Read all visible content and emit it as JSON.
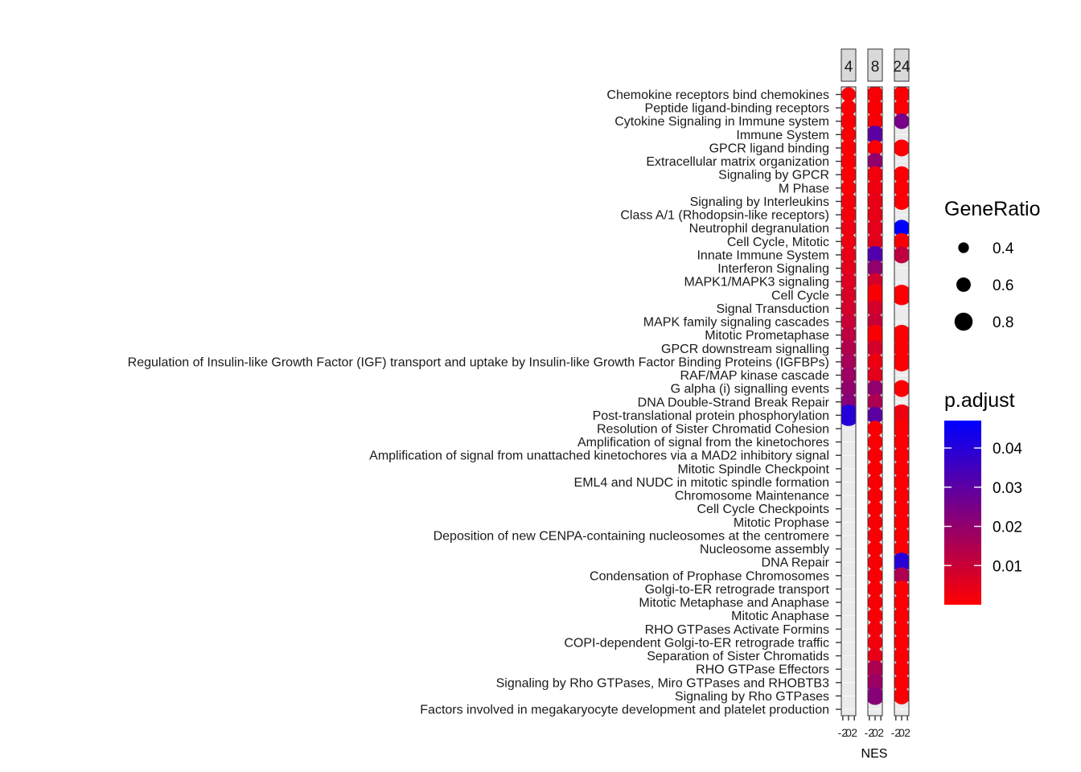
{
  "chart_data": {
    "type": "scatter",
    "xlabel": "NES",
    "facets": [
      {
        "label": "4",
        "x_tick_labels": [
          "-2",
          "0",
          "2"
        ]
      },
      {
        "label": "8",
        "x_tick_labels": [
          "-2",
          "0",
          "2"
        ]
      },
      {
        "label": "24",
        "x_tick_labels": [
          "-2",
          "0",
          "2"
        ]
      }
    ],
    "x_range": [
      -2.5,
      2.5
    ],
    "pathways": [
      "Chemokine receptors bind chemokines",
      "Peptide ligand-binding receptors",
      "Cytokine Signaling in Immune system",
      "Immune System",
      "GPCR ligand binding",
      "Extracellular matrix organization",
      "Signaling by GPCR",
      "M Phase",
      "Signaling by Interleukins",
      "Class A/1 (Rhodopsin-like receptors)",
      "Neutrophil degranulation",
      "Cell Cycle, Mitotic",
      "Innate Immune System",
      "Interferon Signaling",
      "MAPK1/MAPK3 signaling",
      "Cell Cycle",
      "Signal Transduction",
      "MAPK family signaling cascades",
      "Mitotic Prometaphase",
      "GPCR downstream signalling",
      "Regulation of Insulin-like Growth Factor (IGF) transport and uptake by Insulin-like Growth Factor Binding Proteins (IGFBPs)",
      "RAF/MAP kinase cascade",
      "G alpha (i) signalling events",
      "DNA Double-Strand Break Repair",
      "Post-translational protein phosphorylation",
      "Resolution of Sister Chromatid Cohesion",
      "Amplification of signal from the kinetochores",
      "Amplification of signal from unattached kinetochores via a MAD2 inhibitory signal",
      "Mitotic Spindle Checkpoint",
      "EML4 and NUDC in mitotic spindle formation",
      "Chromosome Maintenance",
      "Cell Cycle Checkpoints",
      "Mitotic Prophase",
      "Deposition of new CENPA-containing nucleosomes at the centromere",
      "Nucleosome assembly",
      "DNA Repair",
      "Condensation of Prophase Chromosomes",
      "Golgi-to-ER retrograde transport",
      "Mitotic Metaphase and Anaphase",
      "Mitotic Anaphase",
      "RHO GTPases Activate Formins",
      "COPI-dependent Golgi-to-ER retrograde traffic",
      "Separation of Sister Chromatids",
      "RHO GTPase Effectors",
      "Signaling by Rho GTPases, Miro GTPases and RHOBTB3",
      "Signaling by Rho GTPases",
      "Factors involved in megakaryocyte development and platelet production"
    ],
    "points": [
      {
        "facet": "4",
        "row": 0,
        "nes": 0.0,
        "gene_ratio": 0.45,
        "p_adjust": 0.001
      },
      {
        "facet": "4",
        "row": 1,
        "nes": 0.0,
        "gene_ratio": 0.5,
        "p_adjust": 0.001
      },
      {
        "facet": "4",
        "row": 2,
        "nes": 0.0,
        "gene_ratio": 0.55,
        "p_adjust": 0.001
      },
      {
        "facet": "4",
        "row": 3,
        "nes": 0.0,
        "gene_ratio": 0.5,
        "p_adjust": 0.001
      },
      {
        "facet": "4",
        "row": 4,
        "nes": 0.0,
        "gene_ratio": 0.55,
        "p_adjust": 0.001
      },
      {
        "facet": "4",
        "row": 5,
        "nes": 0.0,
        "gene_ratio": 0.55,
        "p_adjust": 0.001
      },
      {
        "facet": "4",
        "row": 6,
        "nes": 0.0,
        "gene_ratio": 0.55,
        "p_adjust": 0.001
      },
      {
        "facet": "4",
        "row": 7,
        "nes": 0.0,
        "gene_ratio": 0.5,
        "p_adjust": 0.001
      },
      {
        "facet": "4",
        "row": 8,
        "nes": 0.0,
        "gene_ratio": 0.55,
        "p_adjust": 0.002
      },
      {
        "facet": "4",
        "row": 9,
        "nes": 0.0,
        "gene_ratio": 0.55,
        "p_adjust": 0.002
      },
      {
        "facet": "4",
        "row": 10,
        "nes": 0.0,
        "gene_ratio": 0.55,
        "p_adjust": 0.003
      },
      {
        "facet": "4",
        "row": 11,
        "nes": 0.0,
        "gene_ratio": 0.5,
        "p_adjust": 0.003
      },
      {
        "facet": "4",
        "row": 12,
        "nes": 0.0,
        "gene_ratio": 0.55,
        "p_adjust": 0.004
      },
      {
        "facet": "4",
        "row": 13,
        "nes": 0.0,
        "gene_ratio": 0.55,
        "p_adjust": 0.005
      },
      {
        "facet": "4",
        "row": 14,
        "nes": 0.0,
        "gene_ratio": 0.55,
        "p_adjust": 0.006
      },
      {
        "facet": "4",
        "row": 15,
        "nes": 0.0,
        "gene_ratio": 0.55,
        "p_adjust": 0.007
      },
      {
        "facet": "4",
        "row": 16,
        "nes": 0.0,
        "gene_ratio": 0.55,
        "p_adjust": 0.008
      },
      {
        "facet": "4",
        "row": 17,
        "nes": 0.0,
        "gene_ratio": 0.55,
        "p_adjust": 0.01
      },
      {
        "facet": "4",
        "row": 18,
        "nes": 0.0,
        "gene_ratio": 0.55,
        "p_adjust": 0.012
      },
      {
        "facet": "4",
        "row": 19,
        "nes": 0.0,
        "gene_ratio": 0.55,
        "p_adjust": 0.014
      },
      {
        "facet": "4",
        "row": 20,
        "nes": 0.0,
        "gene_ratio": 0.55,
        "p_adjust": 0.016
      },
      {
        "facet": "4",
        "row": 21,
        "nes": 0.0,
        "gene_ratio": 0.55,
        "p_adjust": 0.018
      },
      {
        "facet": "4",
        "row": 22,
        "nes": 0.0,
        "gene_ratio": 0.55,
        "p_adjust": 0.02
      },
      {
        "facet": "4",
        "row": 23,
        "nes": 0.0,
        "gene_ratio": 0.55,
        "p_adjust": 0.022
      },
      {
        "facet": "4",
        "row": 24,
        "nes": 0.0,
        "gene_ratio": 0.75,
        "p_adjust": 0.04
      },
      {
        "facet": "8",
        "row": 0,
        "nes": 0.0,
        "gene_ratio": 0.55,
        "p_adjust": 0.001
      },
      {
        "facet": "8",
        "row": 1,
        "nes": 0.0,
        "gene_ratio": 0.55,
        "p_adjust": 0.001
      },
      {
        "facet": "8",
        "row": 2,
        "nes": 0.0,
        "gene_ratio": 0.55,
        "p_adjust": 0.001
      },
      {
        "facet": "8",
        "row": 3,
        "nes": 0.0,
        "gene_ratio": 0.6,
        "p_adjust": 0.03
      },
      {
        "facet": "8",
        "row": 4,
        "nes": 0.0,
        "gene_ratio": 0.5,
        "p_adjust": 0.001
      },
      {
        "facet": "8",
        "row": 5,
        "nes": 0.0,
        "gene_ratio": 0.55,
        "p_adjust": 0.02
      },
      {
        "facet": "8",
        "row": 6,
        "nes": 0.0,
        "gene_ratio": 0.55,
        "p_adjust": 0.002
      },
      {
        "facet": "8",
        "row": 7,
        "nes": 0.0,
        "gene_ratio": 0.55,
        "p_adjust": 0.003
      },
      {
        "facet": "8",
        "row": 8,
        "nes": 0.0,
        "gene_ratio": 0.55,
        "p_adjust": 0.004
      },
      {
        "facet": "8",
        "row": 9,
        "nes": 0.0,
        "gene_ratio": 0.55,
        "p_adjust": 0.004
      },
      {
        "facet": "8",
        "row": 10,
        "nes": 0.0,
        "gene_ratio": 0.55,
        "p_adjust": 0.005
      },
      {
        "facet": "8",
        "row": 11,
        "nes": 0.0,
        "gene_ratio": 0.55,
        "p_adjust": 0.005
      },
      {
        "facet": "8",
        "row": 12,
        "nes": 0.0,
        "gene_ratio": 0.6,
        "p_adjust": 0.032
      },
      {
        "facet": "8",
        "row": 13,
        "nes": 0.0,
        "gene_ratio": 0.55,
        "p_adjust": 0.02
      },
      {
        "facet": "8",
        "row": 14,
        "nes": 0.0,
        "gene_ratio": 0.55,
        "p_adjust": 0.008
      },
      {
        "facet": "8",
        "row": 15,
        "nes": 0.0,
        "gene_ratio": 0.75,
        "p_adjust": 0.001
      },
      {
        "facet": "8",
        "row": 16,
        "nes": 0.0,
        "gene_ratio": 0.55,
        "p_adjust": 0.008
      },
      {
        "facet": "8",
        "row": 17,
        "nes": 0.0,
        "gene_ratio": 0.55,
        "p_adjust": 0.01
      },
      {
        "facet": "8",
        "row": 18,
        "nes": 0.0,
        "gene_ratio": 0.7,
        "p_adjust": 0.001
      },
      {
        "facet": "8",
        "row": 19,
        "nes": 0.0,
        "gene_ratio": 0.55,
        "p_adjust": 0.008
      },
      {
        "facet": "8",
        "row": 20,
        "nes": 0.0,
        "gene_ratio": 0.55,
        "p_adjust": 0.003
      },
      {
        "facet": "8",
        "row": 21,
        "nes": 0.0,
        "gene_ratio": 0.55,
        "p_adjust": 0.005
      },
      {
        "facet": "8",
        "row": 22,
        "nes": 0.0,
        "gene_ratio": 0.55,
        "p_adjust": 0.02
      },
      {
        "facet": "8",
        "row": 23,
        "nes": 0.0,
        "gene_ratio": 0.55,
        "p_adjust": 0.015
      },
      {
        "facet": "8",
        "row": 24,
        "nes": 0.0,
        "gene_ratio": 0.55,
        "p_adjust": 0.03
      },
      {
        "facet": "8",
        "row": 25,
        "nes": 0.0,
        "gene_ratio": 0.5,
        "p_adjust": 0.001
      },
      {
        "facet": "8",
        "row": 26,
        "nes": 0.0,
        "gene_ratio": 0.5,
        "p_adjust": 0.001
      },
      {
        "facet": "8",
        "row": 27,
        "nes": 0.0,
        "gene_ratio": 0.5,
        "p_adjust": 0.001
      },
      {
        "facet": "8",
        "row": 28,
        "nes": 0.0,
        "gene_ratio": 0.5,
        "p_adjust": 0.001
      },
      {
        "facet": "8",
        "row": 29,
        "nes": 0.0,
        "gene_ratio": 0.5,
        "p_adjust": 0.001
      },
      {
        "facet": "8",
        "row": 30,
        "nes": 0.0,
        "gene_ratio": 0.5,
        "p_adjust": 0.001
      },
      {
        "facet": "8",
        "row": 31,
        "nes": 0.0,
        "gene_ratio": 0.5,
        "p_adjust": 0.001
      },
      {
        "facet": "8",
        "row": 32,
        "nes": 0.0,
        "gene_ratio": 0.5,
        "p_adjust": 0.001
      },
      {
        "facet": "8",
        "row": 33,
        "nes": 0.0,
        "gene_ratio": 0.5,
        "p_adjust": 0.001
      },
      {
        "facet": "8",
        "row": 34,
        "nes": 0.0,
        "gene_ratio": 0.5,
        "p_adjust": 0.001
      },
      {
        "facet": "8",
        "row": 35,
        "nes": 0.0,
        "gene_ratio": 0.5,
        "p_adjust": 0.001
      },
      {
        "facet": "8",
        "row": 36,
        "nes": 0.0,
        "gene_ratio": 0.5,
        "p_adjust": 0.001
      },
      {
        "facet": "8",
        "row": 37,
        "nes": 0.0,
        "gene_ratio": 0.5,
        "p_adjust": 0.001
      },
      {
        "facet": "8",
        "row": 38,
        "nes": 0.0,
        "gene_ratio": 0.5,
        "p_adjust": 0.001
      },
      {
        "facet": "8",
        "row": 39,
        "nes": 0.0,
        "gene_ratio": 0.5,
        "p_adjust": 0.001
      },
      {
        "facet": "8",
        "row": 40,
        "nes": 0.0,
        "gene_ratio": 0.5,
        "p_adjust": 0.002
      },
      {
        "facet": "8",
        "row": 41,
        "nes": 0.0,
        "gene_ratio": 0.5,
        "p_adjust": 0.002
      },
      {
        "facet": "8",
        "row": 42,
        "nes": 0.0,
        "gene_ratio": 0.5,
        "p_adjust": 0.004
      },
      {
        "facet": "8",
        "row": 43,
        "nes": 0.0,
        "gene_ratio": 0.6,
        "p_adjust": 0.015
      },
      {
        "facet": "8",
        "row": 44,
        "nes": 0.0,
        "gene_ratio": 0.6,
        "p_adjust": 0.018
      },
      {
        "facet": "8",
        "row": 45,
        "nes": 0.0,
        "gene_ratio": 0.6,
        "p_adjust": 0.022
      },
      {
        "facet": "24",
        "row": 0,
        "nes": 0.0,
        "gene_ratio": 0.55,
        "p_adjust": 0.001
      },
      {
        "facet": "24",
        "row": 1,
        "nes": 0.0,
        "gene_ratio": 0.55,
        "p_adjust": 0.001
      },
      {
        "facet": "24",
        "row": 2,
        "nes": 0.0,
        "gene_ratio": 0.5,
        "p_adjust": 0.025
      },
      {
        "facet": "24",
        "row": 4,
        "nes": 0.0,
        "gene_ratio": 0.55,
        "p_adjust": 0.001
      },
      {
        "facet": "24",
        "row": 6,
        "nes": 0.0,
        "gene_ratio": 0.55,
        "p_adjust": 0.001
      },
      {
        "facet": "24",
        "row": 7,
        "nes": 0.0,
        "gene_ratio": 0.55,
        "p_adjust": 0.001
      },
      {
        "facet": "24",
        "row": 8,
        "nes": 0.0,
        "gene_ratio": 0.55,
        "p_adjust": 0.001
      },
      {
        "facet": "24",
        "row": 10,
        "nes": 0.0,
        "gene_ratio": 0.55,
        "p_adjust": 0.047
      },
      {
        "facet": "24",
        "row": 11,
        "nes": 0.0,
        "gene_ratio": 0.55,
        "p_adjust": 0.001
      },
      {
        "facet": "24",
        "row": 12,
        "nes": 0.0,
        "gene_ratio": 0.55,
        "p_adjust": 0.012
      },
      {
        "facet": "24",
        "row": 15,
        "nes": 0.0,
        "gene_ratio": 0.7,
        "p_adjust": 0.001
      },
      {
        "facet": "24",
        "row": 18,
        "nes": 0.0,
        "gene_ratio": 0.7,
        "p_adjust": 0.001
      },
      {
        "facet": "24",
        "row": 19,
        "nes": 0.0,
        "gene_ratio": 0.55,
        "p_adjust": 0.001
      },
      {
        "facet": "24",
        "row": 20,
        "nes": 0.0,
        "gene_ratio": 0.65,
        "p_adjust": 0.001
      },
      {
        "facet": "24",
        "row": 22,
        "nes": 0.0,
        "gene_ratio": 0.55,
        "p_adjust": 0.001
      },
      {
        "facet": "24",
        "row": 24,
        "nes": 0.0,
        "gene_ratio": 0.75,
        "p_adjust": 0.003
      },
      {
        "facet": "24",
        "row": 25,
        "nes": 0.0,
        "gene_ratio": 0.6,
        "p_adjust": 0.001
      },
      {
        "facet": "24",
        "row": 26,
        "nes": 0.0,
        "gene_ratio": 0.55,
        "p_adjust": 0.001
      },
      {
        "facet": "24",
        "row": 27,
        "nes": 0.0,
        "gene_ratio": 0.55,
        "p_adjust": 0.001
      },
      {
        "facet": "24",
        "row": 28,
        "nes": 0.0,
        "gene_ratio": 0.55,
        "p_adjust": 0.001
      },
      {
        "facet": "24",
        "row": 29,
        "nes": 0.0,
        "gene_ratio": 0.55,
        "p_adjust": 0.001
      },
      {
        "facet": "24",
        "row": 30,
        "nes": 0.0,
        "gene_ratio": 0.55,
        "p_adjust": 0.001
      },
      {
        "facet": "24",
        "row": 31,
        "nes": 0.0,
        "gene_ratio": 0.55,
        "p_adjust": 0.001
      },
      {
        "facet": "24",
        "row": 32,
        "nes": 0.0,
        "gene_ratio": 0.55,
        "p_adjust": 0.001
      },
      {
        "facet": "24",
        "row": 33,
        "nes": 0.0,
        "gene_ratio": 0.55,
        "p_adjust": 0.001
      },
      {
        "facet": "24",
        "row": 34,
        "nes": 0.0,
        "gene_ratio": 0.55,
        "p_adjust": 0.001
      },
      {
        "facet": "24",
        "row": 35,
        "nes": 0.0,
        "gene_ratio": 0.65,
        "p_adjust": 0.04
      },
      {
        "facet": "24",
        "row": 36,
        "nes": 0.0,
        "gene_ratio": 0.55,
        "p_adjust": 0.015
      },
      {
        "facet": "24",
        "row": 37,
        "nes": 0.0,
        "gene_ratio": 0.55,
        "p_adjust": 0.001
      },
      {
        "facet": "24",
        "row": 38,
        "nes": 0.0,
        "gene_ratio": 0.55,
        "p_adjust": 0.001
      },
      {
        "facet": "24",
        "row": 39,
        "nes": 0.0,
        "gene_ratio": 0.55,
        "p_adjust": 0.001
      },
      {
        "facet": "24",
        "row": 40,
        "nes": 0.0,
        "gene_ratio": 0.55,
        "p_adjust": 0.001
      },
      {
        "facet": "24",
        "row": 41,
        "nes": 0.0,
        "gene_ratio": 0.55,
        "p_adjust": 0.001
      },
      {
        "facet": "24",
        "row": 42,
        "nes": 0.0,
        "gene_ratio": 0.55,
        "p_adjust": 0.001
      },
      {
        "facet": "24",
        "row": 43,
        "nes": 0.0,
        "gene_ratio": 0.55,
        "p_adjust": 0.001
      },
      {
        "facet": "24",
        "row": 44,
        "nes": 0.0,
        "gene_ratio": 0.55,
        "p_adjust": 0.001
      },
      {
        "facet": "24",
        "row": 45,
        "nes": 0.0,
        "gene_ratio": 0.55,
        "p_adjust": 0.001
      }
    ],
    "size_legend": {
      "title": "GeneRatio",
      "entries": [
        {
          "label": "0.4",
          "value": 0.4
        },
        {
          "label": "0.6",
          "value": 0.6
        },
        {
          "label": "0.8",
          "value": 0.8
        }
      ]
    },
    "color_legend": {
      "title": "p.adjust",
      "range": [
        0.0,
        0.047
      ],
      "low_color": "#ff0000",
      "high_color": "#0000ff",
      "ticks": [
        {
          "label": "0.04",
          "value": 0.04
        },
        {
          "label": "0.03",
          "value": 0.03
        },
        {
          "label": "0.02",
          "value": 0.02
        },
        {
          "label": "0.01",
          "value": 0.01
        }
      ]
    },
    "grid": true,
    "legend_position": "right"
  }
}
